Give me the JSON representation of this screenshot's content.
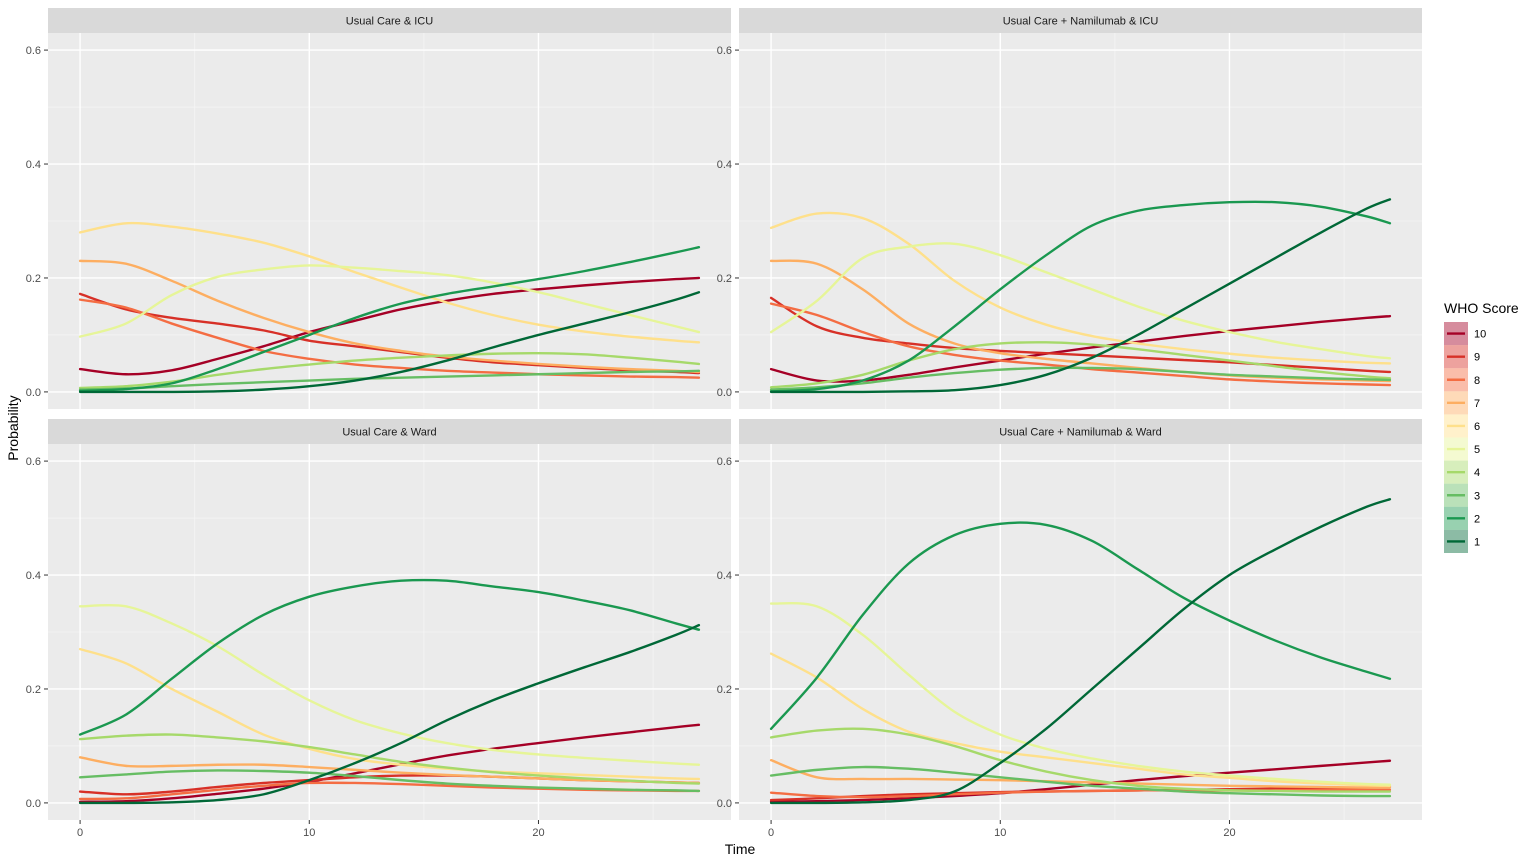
{
  "chart_data": {
    "type": "line",
    "xlabel": "Time",
    "ylabel": "Probability",
    "xlim": [
      -1.4,
      28.4
    ],
    "ylim": [
      -0.03,
      0.63
    ],
    "x_ticks": [
      0,
      10,
      20
    ],
    "y_ticks": [
      0.0,
      0.2,
      0.4,
      0.6
    ],
    "x_tick_labels": [
      "0",
      "10",
      "20"
    ],
    "y_tick_labels": [
      "0.0",
      "0.2",
      "0.4",
      "0.6"
    ],
    "x": [
      0,
      2,
      4,
      6,
      8,
      10,
      12,
      14,
      16,
      18,
      20,
      22,
      24,
      26,
      27
    ],
    "legend": {
      "title": "WHO Score",
      "position": "right",
      "entries": [
        {
          "score": "10",
          "color": "#a50026"
        },
        {
          "score": "9",
          "color": "#d73027"
        },
        {
          "score": "8",
          "color": "#f46d43"
        },
        {
          "score": "7",
          "color": "#fdae61"
        },
        {
          "score": "6",
          "color": "#fee08b"
        },
        {
          "score": "5",
          "color": "#e6f598"
        },
        {
          "score": "4",
          "color": "#a6d96a"
        },
        {
          "score": "3",
          "color": "#66bd63"
        },
        {
          "score": "2",
          "color": "#1a9850"
        },
        {
          "score": "1",
          "color": "#006837"
        }
      ]
    },
    "panels": [
      {
        "title": "Usual Care & ICU",
        "series": [
          {
            "score": "10",
            "values": [
              0.04,
              0.031,
              0.038,
              0.058,
              0.08,
              0.105,
              0.125,
              0.145,
              0.16,
              0.172,
              0.18,
              0.187,
              0.193,
              0.198,
              0.2
            ]
          },
          {
            "score": "9",
            "values": [
              0.172,
              0.145,
              0.13,
              0.12,
              0.108,
              0.09,
              0.08,
              0.07,
              0.06,
              0.052,
              0.047,
              0.042,
              0.038,
              0.035,
              0.033
            ]
          },
          {
            "score": "8",
            "values": [
              0.162,
              0.148,
              0.12,
              0.095,
              0.072,
              0.058,
              0.048,
              0.042,
              0.037,
              0.034,
              0.031,
              0.029,
              0.027,
              0.026,
              0.025
            ]
          },
          {
            "score": "7",
            "values": [
              0.23,
              0.225,
              0.195,
              0.16,
              0.13,
              0.105,
              0.085,
              0.072,
              0.062,
              0.055,
              0.049,
              0.044,
              0.04,
              0.037,
              0.035
            ]
          },
          {
            "score": "6",
            "values": [
              0.28,
              0.296,
              0.29,
              0.278,
              0.262,
              0.238,
              0.21,
              0.183,
              0.157,
              0.135,
              0.118,
              0.106,
              0.097,
              0.09,
              0.087
            ]
          },
          {
            "score": "5",
            "values": [
              0.097,
              0.12,
              0.17,
              0.202,
              0.215,
              0.222,
              0.218,
              0.212,
              0.205,
              0.192,
              0.175,
              0.155,
              0.135,
              0.115,
              0.105
            ]
          },
          {
            "score": "4",
            "values": [
              0.007,
              0.01,
              0.018,
              0.03,
              0.04,
              0.048,
              0.055,
              0.06,
              0.064,
              0.067,
              0.068,
              0.066,
              0.06,
              0.053,
              0.049
            ]
          },
          {
            "score": "3",
            "values": [
              0.004,
              0.006,
              0.01,
              0.014,
              0.017,
              0.02,
              0.023,
              0.025,
              0.027,
              0.029,
              0.031,
              0.033,
              0.035,
              0.036,
              0.037
            ]
          },
          {
            "score": "2",
            "values": [
              0.002,
              0.005,
              0.015,
              0.04,
              0.07,
              0.1,
              0.13,
              0.155,
              0.172,
              0.185,
              0.198,
              0.212,
              0.228,
              0.245,
              0.254
            ]
          },
          {
            "score": "1",
            "values": [
              0.0,
              0.0,
              0.0,
              0.001,
              0.004,
              0.01,
              0.02,
              0.035,
              0.055,
              0.078,
              0.1,
              0.12,
              0.14,
              0.162,
              0.175
            ]
          }
        ]
      },
      {
        "title": "Usual Care + Namilumab & ICU",
        "series": [
          {
            "score": "10",
            "values": [
              0.04,
              0.02,
              0.02,
              0.03,
              0.043,
              0.055,
              0.067,
              0.078,
              0.088,
              0.098,
              0.107,
              0.115,
              0.123,
              0.13,
              0.133
            ]
          },
          {
            "score": "9",
            "values": [
              0.165,
              0.115,
              0.095,
              0.085,
              0.077,
              0.072,
              0.068,
              0.064,
              0.06,
              0.056,
              0.052,
              0.047,
              0.042,
              0.037,
              0.035
            ]
          },
          {
            "score": "8",
            "values": [
              0.155,
              0.135,
              0.105,
              0.08,
              0.065,
              0.055,
              0.048,
              0.04,
              0.034,
              0.028,
              0.022,
              0.018,
              0.015,
              0.013,
              0.012
            ]
          },
          {
            "score": "7",
            "values": [
              0.23,
              0.225,
              0.18,
              0.12,
              0.085,
              0.068,
              0.058,
              0.05,
              0.042,
              0.035,
              0.029,
              0.025,
              0.022,
              0.02,
              0.019
            ]
          },
          {
            "score": "6",
            "values": [
              0.288,
              0.313,
              0.305,
              0.26,
              0.195,
              0.148,
              0.118,
              0.098,
              0.085,
              0.075,
              0.067,
              0.06,
              0.055,
              0.051,
              0.05
            ]
          },
          {
            "score": "5",
            "values": [
              0.105,
              0.16,
              0.235,
              0.255,
              0.26,
              0.24,
              0.21,
              0.18,
              0.15,
              0.125,
              0.105,
              0.088,
              0.075,
              0.063,
              0.059
            ]
          },
          {
            "score": "4",
            "values": [
              0.008,
              0.015,
              0.03,
              0.055,
              0.075,
              0.085,
              0.087,
              0.083,
              0.075,
              0.065,
              0.055,
              0.045,
              0.035,
              0.027,
              0.024
            ]
          },
          {
            "score": "3",
            "values": [
              0.004,
              0.008,
              0.015,
              0.025,
              0.033,
              0.039,
              0.042,
              0.042,
              0.04,
              0.035,
              0.03,
              0.027,
              0.024,
              0.022,
              0.021
            ]
          },
          {
            "score": "2",
            "values": [
              0.001,
              0.005,
              0.02,
              0.055,
              0.115,
              0.18,
              0.24,
              0.292,
              0.318,
              0.328,
              0.333,
              0.333,
              0.325,
              0.308,
              0.296
            ]
          },
          {
            "score": "1",
            "values": [
              0.0,
              0.0,
              0.0,
              0.001,
              0.003,
              0.012,
              0.03,
              0.06,
              0.1,
              0.145,
              0.19,
              0.235,
              0.28,
              0.322,
              0.338
            ]
          }
        ]
      },
      {
        "title": "Usual Care & Ward",
        "series": [
          {
            "score": "10",
            "values": [
              0.002,
              0.003,
              0.008,
              0.016,
              0.025,
              0.037,
              0.052,
              0.068,
              0.083,
              0.095,
              0.105,
              0.115,
              0.124,
              0.133,
              0.137
            ]
          },
          {
            "score": "9",
            "values": [
              0.02,
              0.015,
              0.02,
              0.028,
              0.035,
              0.04,
              0.045,
              0.048,
              0.048,
              0.046,
              0.043,
              0.04,
              0.038,
              0.036,
              0.035
            ]
          },
          {
            "score": "8",
            "values": [
              0.007,
              0.008,
              0.015,
              0.023,
              0.03,
              0.035,
              0.035,
              0.033,
              0.03,
              0.027,
              0.025,
              0.023,
              0.022,
              0.021,
              0.021
            ]
          },
          {
            "score": "7",
            "values": [
              0.08,
              0.065,
              0.065,
              0.067,
              0.067,
              0.063,
              0.058,
              0.053,
              0.049,
              0.046,
              0.043,
              0.04,
              0.038,
              0.036,
              0.035
            ]
          },
          {
            "score": "6",
            "values": [
              0.27,
              0.245,
              0.2,
              0.16,
              0.12,
              0.095,
              0.077,
              0.067,
              0.06,
              0.055,
              0.052,
              0.049,
              0.046,
              0.043,
              0.042
            ]
          },
          {
            "score": "5",
            "values": [
              0.345,
              0.345,
              0.315,
              0.275,
              0.225,
              0.18,
              0.145,
              0.122,
              0.105,
              0.093,
              0.085,
              0.079,
              0.074,
              0.069,
              0.067
            ]
          },
          {
            "score": "4",
            "values": [
              0.112,
              0.118,
              0.12,
              0.115,
              0.108,
              0.098,
              0.085,
              0.072,
              0.062,
              0.054,
              0.048,
              0.043,
              0.039,
              0.035,
              0.034
            ]
          },
          {
            "score": "3",
            "values": [
              0.045,
              0.05,
              0.055,
              0.057,
              0.056,
              0.053,
              0.047,
              0.04,
              0.034,
              0.03,
              0.027,
              0.025,
              0.023,
              0.022,
              0.021
            ]
          },
          {
            "score": "2",
            "values": [
              0.12,
              0.155,
              0.218,
              0.28,
              0.33,
              0.362,
              0.38,
              0.39,
              0.39,
              0.38,
              0.37,
              0.355,
              0.338,
              0.315,
              0.304
            ]
          },
          {
            "score": "1",
            "values": [
              0.0,
              0.0,
              0.001,
              0.005,
              0.015,
              0.04,
              0.07,
              0.105,
              0.145,
              0.18,
              0.21,
              0.238,
              0.265,
              0.295,
              0.312
            ]
          }
        ]
      },
      {
        "title": "Usual Care + Namilumab & Ward",
        "series": [
          {
            "score": "10",
            "values": [
              0.002,
              0.003,
              0.005,
              0.008,
              0.012,
              0.017,
              0.024,
              0.032,
              0.04,
              0.047,
              0.053,
              0.059,
              0.065,
              0.071,
              0.074
            ]
          },
          {
            "score": "9",
            "values": [
              0.005,
              0.008,
              0.012,
              0.015,
              0.017,
              0.019,
              0.02,
              0.021,
              0.022,
              0.023,
              0.024,
              0.025,
              0.026,
              0.027,
              0.028
            ]
          },
          {
            "score": "8",
            "values": [
              0.018,
              0.012,
              0.01,
              0.012,
              0.015,
              0.018,
              0.02,
              0.021,
              0.022,
              0.022,
              0.022,
              0.022,
              0.023,
              0.023,
              0.023
            ]
          },
          {
            "score": "7",
            "values": [
              0.075,
              0.045,
              0.042,
              0.042,
              0.041,
              0.04,
              0.038,
              0.036,
              0.034,
              0.032,
              0.03,
              0.029,
              0.028,
              0.027,
              0.027
            ]
          },
          {
            "score": "6",
            "values": [
              0.262,
              0.22,
              0.165,
              0.125,
              0.105,
              0.09,
              0.08,
              0.07,
              0.06,
              0.05,
              0.044,
              0.038,
              0.034,
              0.031,
              0.03
            ]
          },
          {
            "score": "5",
            "values": [
              0.35,
              0.345,
              0.295,
              0.225,
              0.16,
              0.12,
              0.095,
              0.078,
              0.065,
              0.055,
              0.048,
              0.042,
              0.037,
              0.033,
              0.032
            ]
          },
          {
            "score": "4",
            "values": [
              0.115,
              0.127,
              0.13,
              0.12,
              0.1,
              0.075,
              0.055,
              0.04,
              0.03,
              0.025,
              0.022,
              0.021,
              0.02,
              0.02,
              0.02
            ]
          },
          {
            "score": "3",
            "values": [
              0.048,
              0.058,
              0.063,
              0.06,
              0.053,
              0.045,
              0.037,
              0.03,
              0.025,
              0.02,
              0.017,
              0.015,
              0.013,
              0.012,
              0.012
            ]
          },
          {
            "score": "2",
            "values": [
              0.13,
              0.22,
              0.33,
              0.42,
              0.47,
              0.49,
              0.488,
              0.46,
              0.41,
              0.36,
              0.32,
              0.285,
              0.255,
              0.23,
              0.218
            ]
          },
          {
            "score": "1",
            "values": [
              0.0,
              0.0,
              0.001,
              0.005,
              0.02,
              0.07,
              0.13,
              0.2,
              0.27,
              0.34,
              0.4,
              0.445,
              0.485,
              0.52,
              0.533
            ]
          }
        ]
      }
    ]
  }
}
